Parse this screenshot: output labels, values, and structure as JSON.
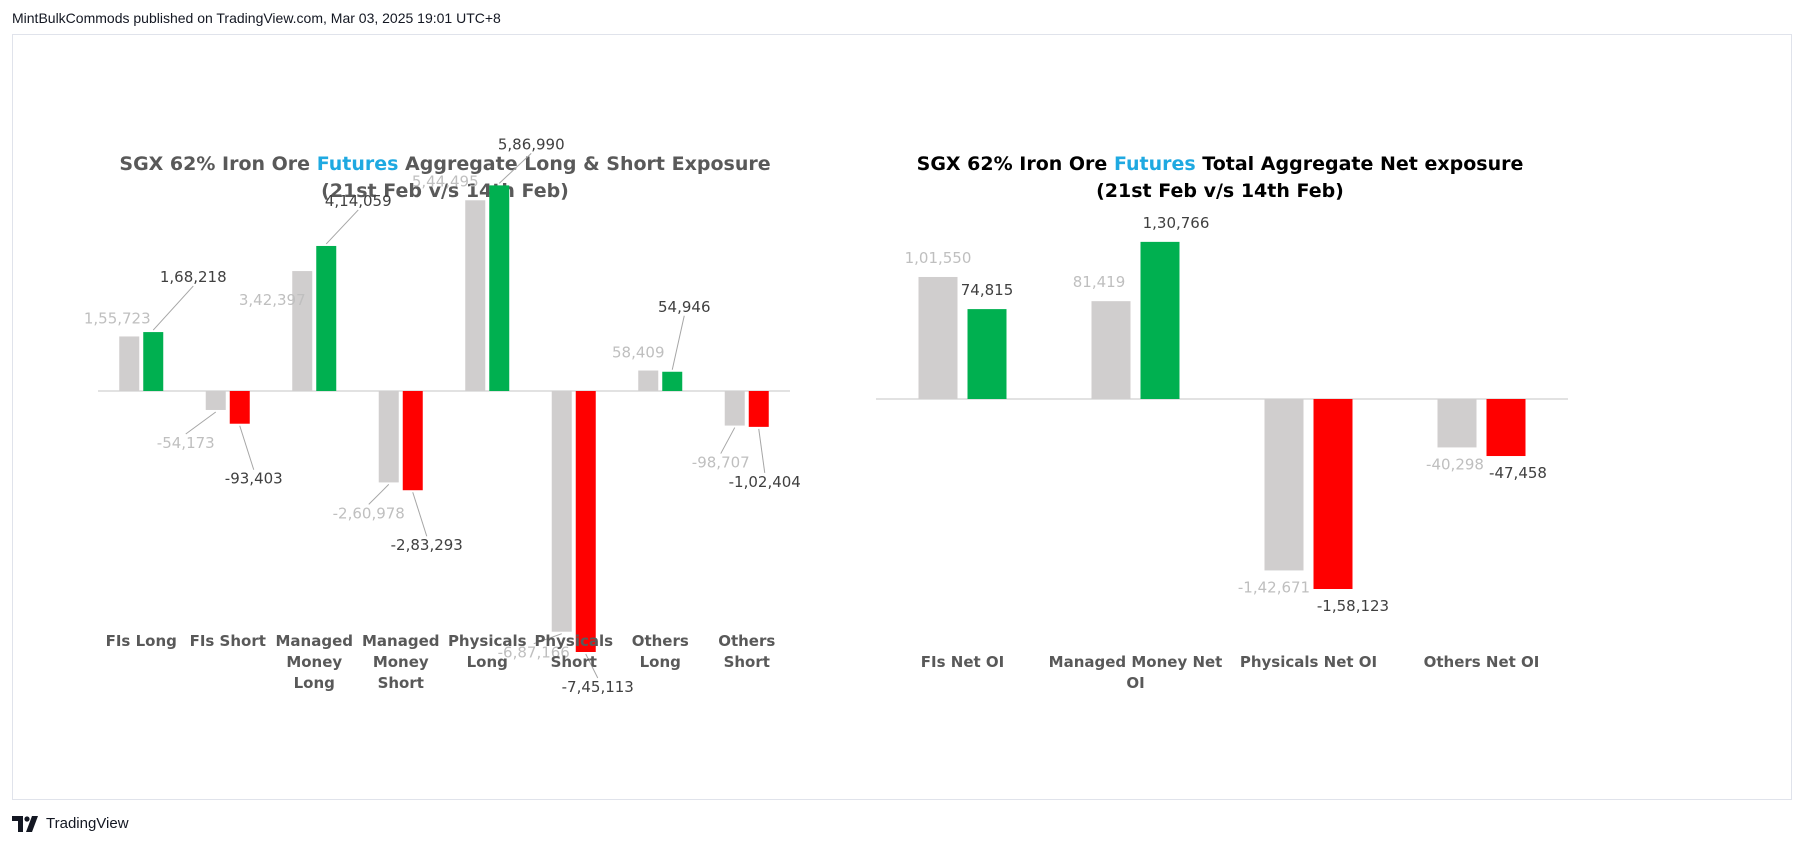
{
  "header": {
    "publisher_line": "MintBulkCommods published on TradingView.com, Mar 03, 2025 19:01 UTC+8"
  },
  "footer": {
    "brand": "TradingView"
  },
  "colors": {
    "prev": "#d0cece",
    "long": "#00b050",
    "short": "#ff0000",
    "highlight": "#1fa9e1",
    "title_left": "#595959",
    "title_right": "#000000"
  },
  "chart_data": [
    {
      "type": "bar",
      "title_parts": [
        "SGX 62% Iron Ore ",
        "Futures",
        " Aggregate Long & Short Exposure"
      ],
      "subtitle": "(21st Feb v/s 14th Feb)",
      "categories": [
        [
          "FIs Long"
        ],
        [
          "FIs Short"
        ],
        [
          "Managed",
          "Money",
          "Long"
        ],
        [
          "Managed",
          "Money",
          "Short"
        ],
        [
          "Physicals",
          "Long"
        ],
        [
          "Physicals",
          "Short"
        ],
        [
          "Others",
          "Long"
        ],
        [
          "Others",
          "Short"
        ]
      ],
      "series": [
        {
          "values": [
            155723,
            -54173,
            342397,
            -260978,
            544495,
            -687166,
            58409,
            -98707
          ],
          "labels": [
            "1,55,723",
            "-54,173",
            "3,42,397",
            "-2,60,978",
            "5,44,495",
            "-6,87,166",
            "58,409",
            "-98,707"
          ]
        },
        {
          "values": [
            168218,
            -93403,
            414059,
            -283293,
            586990,
            -745113,
            54946,
            -102404
          ],
          "labels": [
            "1,68,218",
            "-93,403",
            "4,14,059",
            "-2,83,293",
            "5,86,990",
            "-7,45,113",
            "54,946",
            "-1,02,404"
          ]
        }
      ]
    },
    {
      "type": "bar",
      "title_parts": [
        "SGX 62% Iron Ore ",
        "Futures",
        " Total Aggregate Net exposure"
      ],
      "subtitle": "(21st Feb v/s 14th Feb)",
      "categories": [
        [
          "FIs Net OI"
        ],
        [
          "Managed Money Net",
          "OI"
        ],
        [
          "Physicals Net OI"
        ],
        [
          "Others Net OI"
        ]
      ],
      "series": [
        {
          "values": [
            101550,
            81419,
            -142671,
            -40298
          ],
          "labels": [
            "1,01,550",
            "81,419",
            "-1,42,671",
            "-40,298"
          ]
        },
        {
          "values": [
            74815,
            130766,
            -158123,
            -47458
          ],
          "labels": [
            "74,815",
            "1,30,766",
            "-1,58,123",
            "-47,458"
          ]
        }
      ]
    }
  ]
}
